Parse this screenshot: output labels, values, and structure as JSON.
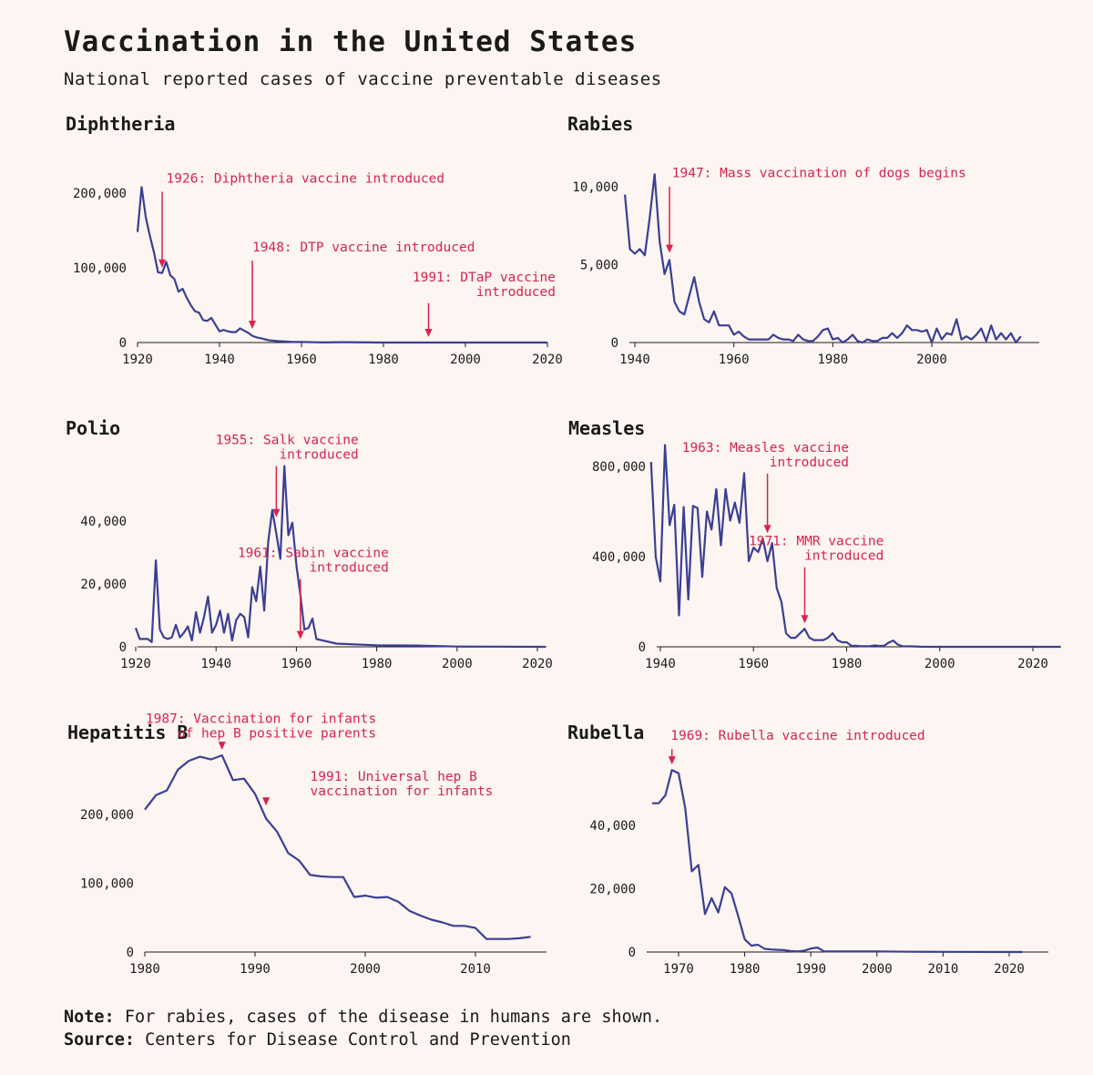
{
  "title": "Vaccination in the United States",
  "subtitle": "National reported cases of vaccine preventable diseases",
  "colors": {
    "line": "#3a3f94",
    "annotation": "#d6244e",
    "background": "#fdf5f1"
  },
  "footer": {
    "note_label": "Note:",
    "note_text": " For rabies, cases of the disease in humans are shown.",
    "source_label": "Source:",
    "source_text": " Centers for Disease Control and Prevention"
  },
  "chart_data": [
    {
      "id": "diphtheria",
      "type": "line",
      "title": "Diphtheria",
      "xlim": [
        1920,
        2020
      ],
      "ylim": [
        0,
        220000
      ],
      "xticks": [
        {
          "v": 1920,
          "label": "1920"
        },
        {
          "v": 1940,
          "label": "1940"
        },
        {
          "v": 1960,
          "label": "1960"
        },
        {
          "v": 1980,
          "label": "1980"
        },
        {
          "v": 2000,
          "label": "2000"
        },
        {
          "v": 2020,
          "label": "2020"
        }
      ],
      "yticks": [
        {
          "v": 0,
          "label": "0"
        },
        {
          "v": 100000,
          "label": "100,000"
        },
        {
          "v": 200000,
          "label": "200,000"
        }
      ],
      "x": [
        1920,
        1921,
        1922,
        1923,
        1924,
        1925,
        1926,
        1927,
        1928,
        1929,
        1930,
        1931,
        1932,
        1933,
        1934,
        1935,
        1936,
        1937,
        1938,
        1939,
        1940,
        1941,
        1942,
        1943,
        1944,
        1945,
        1946,
        1947,
        1948,
        1949,
        1950,
        1952,
        1954,
        1956,
        1958,
        1960,
        1965,
        1970,
        1980,
        1990,
        2000,
        2010,
        2020
      ],
      "y": [
        148000,
        208000,
        168000,
        143000,
        121000,
        94000,
        93000,
        108000,
        90000,
        85000,
        68000,
        72000,
        60000,
        50000,
        42000,
        40000,
        30000,
        29000,
        33000,
        24000,
        15000,
        17000,
        15000,
        14000,
        14000,
        19000,
        16000,
        13000,
        9000,
        7000,
        5800,
        3000,
        2000,
        1500,
        900,
        900,
        160,
        430,
        5,
        4,
        1,
        0,
        0
      ],
      "annotations": [
        {
          "x": 1926,
          "y": 93000,
          "label": "1926: Diphtheria vaccine introduced",
          "tx": 1927,
          "ty": 214000,
          "anchor": "start"
        },
        {
          "x": 1948,
          "y": 11000,
          "label": "1948: DTP vaccine introduced",
          "tx": 1948,
          "ty": 122000,
          "anchor": "start"
        },
        {
          "x": 1991,
          "y": 0,
          "label": "1991: DTaP vaccine",
          "label2": "introduced",
          "tx": 2022,
          "ty": 82000,
          "anchor": "end"
        }
      ]
    },
    {
      "id": "rabies",
      "type": "line",
      "title": "Rabies",
      "xlim": [
        1938,
        2020
      ],
      "ylim": [
        0,
        11000
      ],
      "xticks": [
        {
          "v": 1940,
          "label": "1940"
        },
        {
          "v": 1960,
          "label": "1960"
        },
        {
          "v": 1980,
          "label": "1980"
        },
        {
          "v": 2000,
          "label": "2000"
        }
      ],
      "yticks": [
        {
          "v": 0,
          "label": "0"
        },
        {
          "v": 5000,
          "label": "5,000"
        },
        {
          "v": 10000,
          "label": "10,000"
        }
      ],
      "x": [
        1938,
        1939,
        1940,
        1941,
        1942,
        1943,
        1944,
        1945,
        1946,
        1947,
        1948,
        1949,
        1950,
        1952,
        1953,
        1954,
        1955,
        1956,
        1957,
        1958,
        1959,
        1960,
        1961,
        1962,
        1963,
        1964,
        1965,
        1966,
        1967,
        1968,
        1969,
        1970,
        1971,
        1972,
        1973,
        1974,
        1975,
        1976,
        1977,
        1978,
        1979,
        1980,
        1981,
        1982,
        1983,
        1984,
        1985,
        1986,
        1987,
        1988,
        1989,
        1990,
        1991,
        1992,
        1993,
        1994,
        1995,
        1996,
        1997,
        1998,
        1999,
        2000,
        2001,
        2002,
        2003,
        2004,
        2005,
        2006,
        2007,
        2008,
        2009,
        2010,
        2011,
        2012,
        2013,
        2014,
        2015,
        2016,
        2017,
        2018
      ],
      "y": [
        9500,
        6000,
        5700,
        6000,
        5600,
        8000,
        10800,
        6500,
        4400,
        5300,
        2600,
        2000,
        1800,
        4200,
        2600,
        1500,
        1300,
        2000,
        1100,
        1100,
        1100,
        500,
        700,
        400,
        200,
        200,
        200,
        200,
        200,
        500,
        300,
        200,
        200,
        100,
        500,
        200,
        100,
        100,
        400,
        800,
        900,
        200,
        300,
        0,
        200,
        500,
        100,
        0,
        200,
        100,
        100,
        300,
        300,
        600,
        300,
        600,
        1100,
        800,
        800,
        700,
        800,
        0,
        900,
        200,
        600,
        500,
        1500,
        200,
        400,
        200,
        500,
        900,
        100,
        1100,
        200,
        600,
        200,
        600,
        0,
        400
      ],
      "annotations": [
        {
          "x": 1947,
          "y": 5400,
          "label": "1947: Mass vaccination of dogs begins",
          "tx": 1947.5,
          "ty": 10600,
          "anchor": "start"
        }
      ]
    },
    {
      "id": "polio",
      "type": "line",
      "title": "Polio",
      "xlim": [
        1920,
        2022
      ],
      "ylim": [
        0,
        60000
      ],
      "xticks": [
        {
          "v": 1920,
          "label": "1920"
        },
        {
          "v": 1940,
          "label": "1940"
        },
        {
          "v": 1960,
          "label": "1960"
        },
        {
          "v": 1980,
          "label": "1980"
        },
        {
          "v": 2000,
          "label": "2000"
        },
        {
          "v": 2020,
          "label": "2020"
        }
      ],
      "yticks": [
        {
          "v": 0,
          "label": "0"
        },
        {
          "v": 20000,
          "label": "20,000"
        },
        {
          "v": 40000,
          "label": "40,000"
        }
      ],
      "x": [
        1920,
        1921,
        1922,
        1923,
        1924,
        1925,
        1926,
        1927,
        1928,
        1929,
        1930,
        1931,
        1932,
        1933,
        1934,
        1935,
        1936,
        1937,
        1938,
        1939,
        1940,
        1941,
        1942,
        1943,
        1944,
        1945,
        1946,
        1947,
        1948,
        1949,
        1950,
        1951,
        1952,
        1953,
        1954,
        1955,
        1956,
        1957,
        1958,
        1959,
        1960,
        1961,
        1962,
        1963,
        1964,
        1965,
        1970,
        1980,
        1990,
        2000,
        2010,
        2022
      ],
      "y": [
        6000,
        2500,
        2500,
        2500,
        1500,
        27500,
        5500,
        3000,
        2500,
        3000,
        7000,
        3000,
        4500,
        6500,
        2000,
        11000,
        4500,
        9500,
        16000,
        4500,
        7000,
        11500,
        4500,
        10500,
        2000,
        8500,
        10500,
        9500,
        3000,
        19000,
        14500,
        25500,
        11500,
        33500,
        43500,
        36000,
        28000,
        57500,
        35500,
        39500,
        26000,
        16500,
        5500,
        6000,
        9000,
        2500,
        1000,
        500,
        400,
        100,
        50,
        0
      ],
      "annotations": [
        {
          "x": 1955,
          "y": 39500,
          "label": "1955: Salk vaccine",
          "label2": "introduced",
          "tx": 1975.5,
          "ty": 64500,
          "anchor": "end"
        },
        {
          "x": 1961,
          "y": 700,
          "label": "1961: Sabin vaccine",
          "label2": "introduced",
          "tx": 1983,
          "ty": 28500,
          "anchor": "end"
        }
      ]
    },
    {
      "id": "measles",
      "type": "line",
      "title": "Measles",
      "xlim": [
        1938,
        2026
      ],
      "ylim": [
        0,
        900000
      ],
      "xticks": [
        {
          "v": 1940,
          "label": "1940"
        },
        {
          "v": 1960,
          "label": "1960"
        },
        {
          "v": 1980,
          "label": "1980"
        },
        {
          "v": 2000,
          "label": "2000"
        },
        {
          "v": 2020,
          "label": "2020"
        }
      ],
      "yticks": [
        {
          "v": 0,
          "label": "0"
        },
        {
          "v": 400000,
          "label": "400,000"
        },
        {
          "v": 800000,
          "label": "800,000"
        }
      ],
      "x": [
        1938,
        1939,
        1940,
        1941,
        1942,
        1943,
        1944,
        1945,
        1946,
        1947,
        1948,
        1949,
        1950,
        1951,
        1952,
        1953,
        1954,
        1955,
        1956,
        1957,
        1958,
        1959,
        1960,
        1961,
        1962,
        1963,
        1964,
        1965,
        1966,
        1967,
        1968,
        1969,
        1970,
        1971,
        1972,
        1973,
        1974,
        1975,
        1976,
        1977,
        1978,
        1979,
        1980,
        1981,
        1982,
        1983,
        1984,
        1985,
        1986,
        1987,
        1988,
        1989,
        1990,
        1991,
        1992,
        1994,
        1996,
        2000,
        2010,
        2020,
        2026
      ],
      "y": [
        820000,
        400000,
        290000,
        895000,
        540000,
        630000,
        140000,
        620000,
        210000,
        625000,
        615000,
        310000,
        600000,
        520000,
        700000,
        450000,
        700000,
        560000,
        640000,
        550000,
        770000,
        380000,
        440000,
        420000,
        480000,
        380000,
        460000,
        260000,
        200000,
        60000,
        40000,
        40000,
        60000,
        80000,
        40000,
        30000,
        30000,
        30000,
        40000,
        60000,
        30000,
        20000,
        20000,
        5000,
        5000,
        3000,
        3000,
        3000,
        6000,
        4000,
        4000,
        18000,
        28000,
        10000,
        2500,
        2000,
        500,
        100,
        60,
        20,
        0
      ],
      "annotations": [
        {
          "x": 1963,
          "y": 480000,
          "label": "1963: Measles vaccine",
          "label2": "introduced",
          "tx": 1980.5,
          "ty": 865000,
          "anchor": "end"
        },
        {
          "x": 1971,
          "y": 80000,
          "label": "1971: MMR vaccine",
          "label2": "introduced",
          "tx": 1988,
          "ty": 450000,
          "anchor": "end"
        }
      ]
    },
    {
      "id": "hepb",
      "type": "line",
      "title": "Hepatitis B",
      "xlim": [
        1980,
        2017
      ],
      "ylim": [
        0,
        300000
      ],
      "xticks": [
        {
          "v": 1980,
          "label": "1980"
        },
        {
          "v": 1990,
          "label": "1990"
        },
        {
          "v": 2000,
          "label": "2000"
        },
        {
          "v": 2010,
          "label": "2010"
        }
      ],
      "yticks": [
        {
          "v": 0,
          "label": "0"
        },
        {
          "v": 100000,
          "label": "100,000"
        },
        {
          "v": 200000,
          "label": "200,000"
        }
      ],
      "x": [
        1980,
        1981,
        1982,
        1983,
        1984,
        1985,
        1986,
        1987,
        1988,
        1989,
        1990,
        1991,
        1992,
        1993,
        1994,
        1995,
        1996,
        1997,
        1998,
        1999,
        2000,
        2001,
        2002,
        2003,
        2004,
        2005,
        2006,
        2007,
        2008,
        2009,
        2010,
        2011,
        2012,
        2013,
        2014,
        2015
      ],
      "y": [
        207000,
        228000,
        235000,
        265000,
        278000,
        284000,
        280000,
        286000,
        250000,
        252000,
        230000,
        194000,
        175000,
        144000,
        133000,
        112000,
        110000,
        109000,
        109000,
        80000,
        82000,
        79000,
        80000,
        73000,
        60000,
        53000,
        47000,
        43000,
        38000,
        38000,
        35000,
        19000,
        19000,
        19000,
        20000,
        22000
      ],
      "annotations": [
        {
          "x": 1987,
          "y": 286000,
          "label": "1987: Vaccination for infants",
          "label2": "of hep B positive parents",
          "tx": 2001,
          "ty": 333000,
          "anchor": "end"
        },
        {
          "x": 1991,
          "y": 205000,
          "label": "1991: Universal hep B",
          "label2": "vaccination for infants",
          "tx": 1995,
          "ty": 249000,
          "anchor": "start"
        }
      ]
    },
    {
      "id": "rubella",
      "type": "line",
      "title": "Rubella",
      "xlim": [
        1965,
        2027
      ],
      "ylim": [
        0,
        60000
      ],
      "xticks": [
        {
          "v": 1970,
          "label": "1970"
        },
        {
          "v": 1980,
          "label": "1980"
        },
        {
          "v": 1990,
          "label": "1990"
        },
        {
          "v": 2000,
          "label": "2000"
        },
        {
          "v": 2010,
          "label": "2010"
        },
        {
          "v": 2020,
          "label": "2020"
        }
      ],
      "yticks": [
        {
          "v": 0,
          "label": "0"
        },
        {
          "v": 20000,
          "label": "20,000"
        },
        {
          "v": 40000,
          "label": "40,000"
        }
      ],
      "x": [
        1966,
        1967,
        1968,
        1969,
        1970,
        1971,
        1972,
        1973,
        1974,
        1975,
        1976,
        1977,
        1978,
        1979,
        1980,
        1981,
        1982,
        1983,
        1984,
        1985,
        1986,
        1987,
        1988,
        1989,
        1990,
        1991,
        1992,
        1995,
        2000,
        2005,
        2010,
        2022
      ],
      "y": [
        47000,
        47000,
        49500,
        57500,
        56500,
        45500,
        25500,
        27500,
        12000,
        17000,
        12500,
        20500,
        18500,
        11500,
        4000,
        2000,
        2300,
        1000,
        800,
        700,
        600,
        300,
        200,
        400,
        1100,
        1400,
        200,
        200,
        200,
        100,
        50,
        0
      ],
      "annotations": [
        {
          "x": 1969,
          "y": 57500,
          "label": "1969: Rubella vaccine introduced",
          "tx": 1968.8,
          "ty": 67000,
          "anchor": "start"
        }
      ]
    }
  ]
}
